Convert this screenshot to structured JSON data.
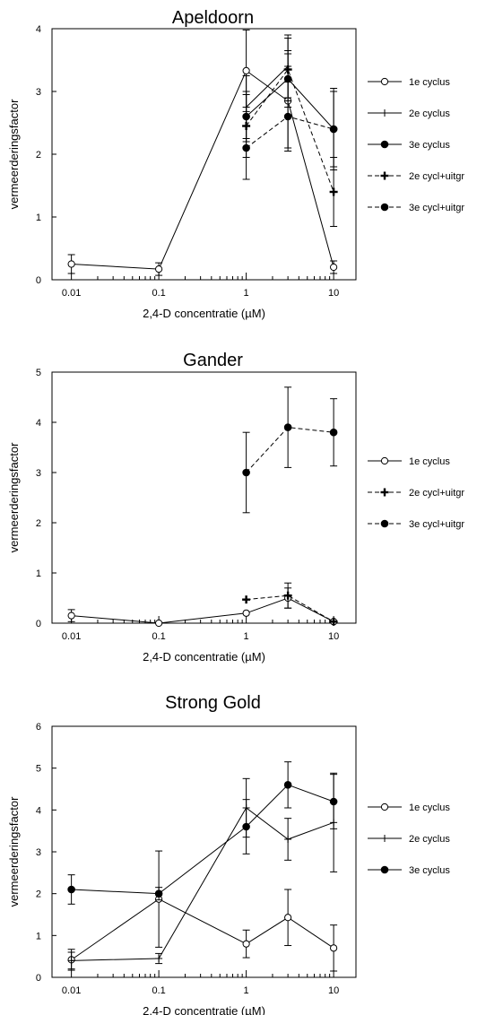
{
  "chart_data": [
    {
      "type": "line",
      "title": "Apeldoorn",
      "xlabel": "2,4-D concentratie (µM)",
      "ylabel": "vermeerderingsfactor",
      "x_scale": "log",
      "xlim": [
        0.006,
        18
      ],
      "ylim": [
        0,
        4
      ],
      "x_ticks": [
        "0.01",
        "0.1",
        "1",
        "10"
      ],
      "y_ticks": [
        "0",
        "1",
        "2",
        "3",
        "4"
      ],
      "grid": false,
      "legend_position": "right",
      "series": [
        {
          "name": "1e cyclus",
          "marker": "open-circle",
          "dash": "solid",
          "x": [
            0.01,
            0.1,
            1,
            3,
            10
          ],
          "y": [
            0.25,
            0.17,
            3.33,
            2.85,
            0.2
          ],
          "err": [
            0.15,
            0.1,
            0.65,
            0.75,
            0.1
          ]
        },
        {
          "name": "2e cyclus",
          "marker": "plus",
          "dash": "solid",
          "x": [
            1,
            3
          ],
          "y": [
            2.75,
            3.4
          ],
          "err": [
            0.5,
            0.5
          ]
        },
        {
          "name": "3e cyclus",
          "marker": "filled-circle",
          "dash": "solid",
          "x": [
            1,
            3,
            10
          ],
          "y": [
            2.6,
            3.2,
            2.4
          ],
          "err": [
            0.4,
            0.45,
            0.65
          ]
        },
        {
          "name": "2e cycl+uitgr",
          "marker": "bold-plus",
          "dash": "dashed",
          "x": [
            1,
            3,
            10
          ],
          "y": [
            2.45,
            3.35,
            1.4
          ],
          "err": [
            0.5,
            0.5,
            0.55
          ]
        },
        {
          "name": "3e cycl+uitgr",
          "marker": "filled-circle",
          "dash": "dashed",
          "x": [
            1,
            3,
            10
          ],
          "y": [
            2.1,
            2.6,
            2.4
          ],
          "err": [
            0.5,
            0.55,
            0.6
          ]
        }
      ]
    },
    {
      "type": "line",
      "title": "Gander",
      "xlabel": "2,4-D concentratie (µM)",
      "ylabel": "vermeerderingsfactor",
      "x_scale": "log",
      "xlim": [
        0.006,
        18
      ],
      "ylim": [
        0,
        5
      ],
      "x_ticks": [
        "0.01",
        "0.1",
        "1",
        "10"
      ],
      "y_ticks": [
        "0",
        "1",
        "2",
        "3",
        "4",
        "5"
      ],
      "grid": false,
      "legend_position": "right",
      "series": [
        {
          "name": "1e cyclus",
          "marker": "open-circle",
          "dash": "solid",
          "x": [
            0.01,
            0.1,
            1,
            3,
            10
          ],
          "y": [
            0.15,
            0.0,
            0.2,
            0.5,
            0.03
          ],
          "err": [
            0.12,
            0.0,
            0.0,
            0.2,
            0.0
          ]
        },
        {
          "name": "2e cycl+uitgr",
          "marker": "bold-plus",
          "dash": "dashed",
          "x": [
            1,
            3,
            10
          ],
          "y": [
            0.47,
            0.55,
            0.03
          ],
          "err": [
            0.0,
            0.25,
            0.0
          ]
        },
        {
          "name": "3e cycl+uitgr",
          "marker": "filled-circle",
          "dash": "dashed",
          "x": [
            1,
            3,
            10
          ],
          "y": [
            3.0,
            3.9,
            3.8
          ],
          "err": [
            0.8,
            0.8,
            0.67
          ]
        }
      ]
    },
    {
      "type": "line",
      "title": "Strong Gold",
      "xlabel": "2,4-D concentratie (µM)",
      "ylabel": "vermeerderingsfactor",
      "x_scale": "log",
      "xlim": [
        0.006,
        18
      ],
      "ylim": [
        0,
        6
      ],
      "x_ticks": [
        "0.01",
        "0.1",
        "1",
        "10"
      ],
      "y_ticks": [
        "0",
        "1",
        "2",
        "3",
        "4",
        "5",
        "6"
      ],
      "grid": false,
      "legend_position": "right",
      "series": [
        {
          "name": "1e cyclus",
          "marker": "open-circle",
          "dash": "solid",
          "x": [
            0.01,
            0.1,
            1,
            3,
            10
          ],
          "y": [
            0.42,
            1.87,
            0.8,
            1.43,
            0.7
          ],
          "err": [
            0.25,
            1.15,
            0.33,
            0.67,
            0.55
          ]
        },
        {
          "name": "2e cyclus",
          "marker": "plus",
          "dash": "solid",
          "x": [
            0.01,
            0.1,
            1,
            3,
            10
          ],
          "y": [
            0.4,
            0.45,
            4.05,
            3.3,
            3.7
          ],
          "err": [
            0.2,
            0.12,
            0.7,
            0.5,
            1.18
          ]
        },
        {
          "name": "3e cyclus",
          "marker": "filled-circle",
          "dash": "solid",
          "x": [
            0.01,
            0.1,
            1,
            3,
            10
          ],
          "y": [
            2.1,
            2.0,
            3.6,
            4.6,
            4.2
          ],
          "err": [
            0.35,
            0.15,
            0.65,
            0.55,
            0.65
          ]
        }
      ]
    }
  ]
}
